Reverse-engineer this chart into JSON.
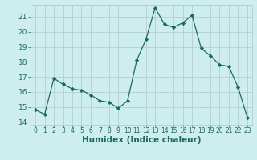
{
  "x": [
    0,
    1,
    2,
    3,
    4,
    5,
    6,
    7,
    8,
    9,
    10,
    11,
    12,
    13,
    14,
    15,
    16,
    17,
    18,
    19,
    20,
    21,
    22,
    23
  ],
  "y": [
    14.8,
    14.5,
    16.9,
    16.5,
    16.2,
    16.1,
    15.8,
    15.4,
    15.3,
    14.9,
    15.4,
    18.1,
    19.5,
    21.6,
    20.5,
    20.3,
    20.6,
    21.1,
    18.9,
    18.4,
    17.8,
    17.7,
    16.3,
    14.3
  ],
  "xlabel": "Humidex (Indice chaleur)",
  "xlim": [
    -0.5,
    23.5
  ],
  "ylim": [
    13.8,
    21.8
  ],
  "yticks": [
    14,
    15,
    16,
    17,
    18,
    19,
    20,
    21
  ],
  "xticks": [
    0,
    1,
    2,
    3,
    4,
    5,
    6,
    7,
    8,
    9,
    10,
    11,
    12,
    13,
    14,
    15,
    16,
    17,
    18,
    19,
    20,
    21,
    22,
    23
  ],
  "line_color": "#1a6b5a",
  "marker": "D",
  "marker_size": 2.2,
  "bg_color": "#ceeeed",
  "grid_color": "#b0c8c8",
  "tick_color": "#1a6b5a",
  "label_color": "#1a6b5a",
  "xlabel_fontsize": 7.5,
  "ytick_fontsize": 6.5,
  "xtick_fontsize": 5.5
}
